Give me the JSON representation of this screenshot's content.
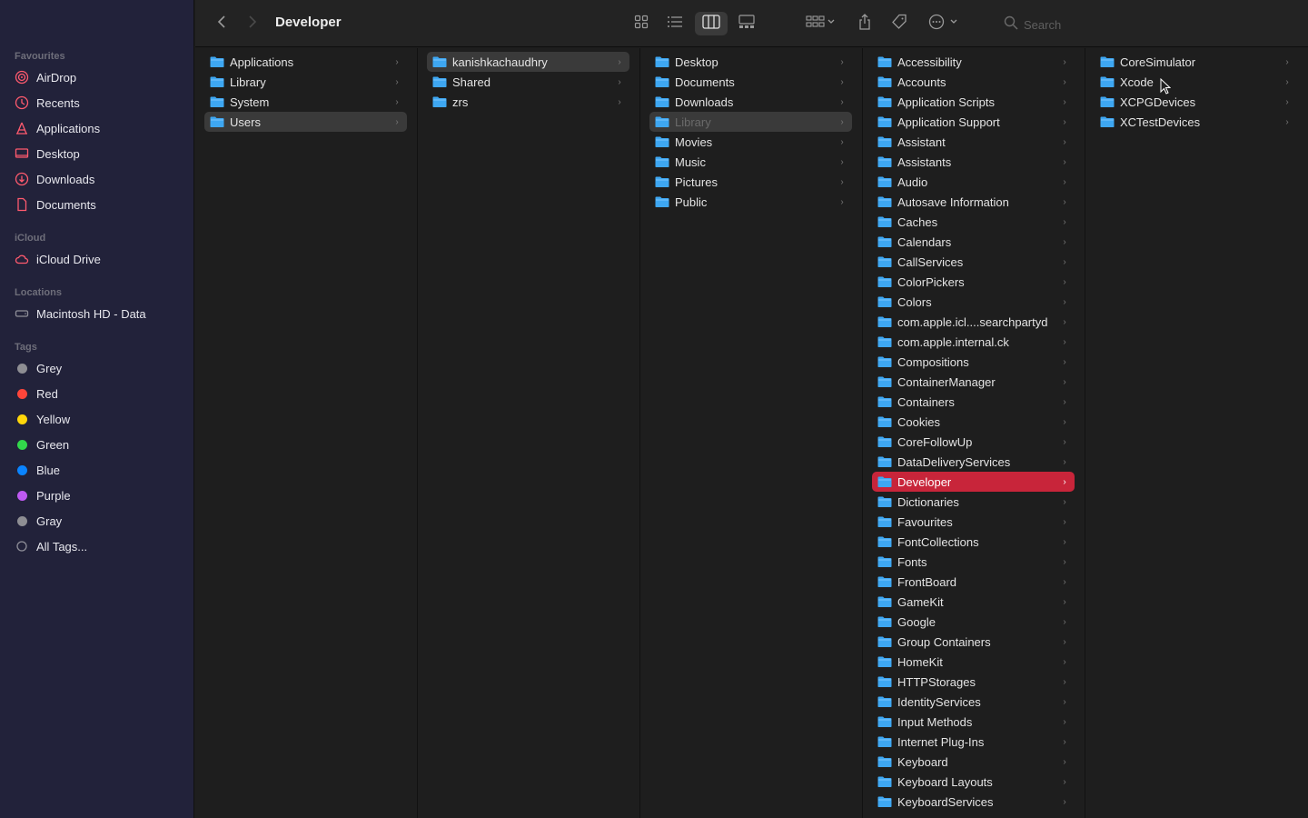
{
  "window": {
    "title": "Developer"
  },
  "sidebar": {
    "favourites_header": "Favourites",
    "favourites": [
      "AirDrop",
      "Recents",
      "Applications",
      "Desktop",
      "Downloads",
      "Documents"
    ],
    "icloud_header": "iCloud",
    "icloud": [
      "iCloud Drive"
    ],
    "locations_header": "Locations",
    "locations": [
      "Macintosh HD - Data"
    ],
    "tags_header": "Tags",
    "tags": [
      {
        "label": "Grey",
        "color": "#8e8e93"
      },
      {
        "label": "Red",
        "color": "#ff453a"
      },
      {
        "label": "Yellow",
        "color": "#ffd60a"
      },
      {
        "label": "Green",
        "color": "#32d74b"
      },
      {
        "label": "Blue",
        "color": "#0a84ff"
      },
      {
        "label": "Purple",
        "color": "#bf5af2"
      },
      {
        "label": "Gray",
        "color": "#8e8e93"
      }
    ],
    "all_tags": "All Tags...",
    "accent_color": "#ff5a6e"
  },
  "toolbar": {
    "search_placeholder": "Search",
    "icons": [
      "back-icon",
      "forward-icon",
      "icon-view-icon",
      "list-view-icon",
      "column-view-icon",
      "gallery-view-icon",
      "group-icon",
      "share-icon",
      "tag-icon",
      "more-icon",
      "search-icon"
    ]
  },
  "columns": [
    {
      "items": [
        "Applications",
        "Library",
        "System",
        "Users"
      ],
      "selected": 3,
      "selected_style": "gray"
    },
    {
      "items": [
        "kanishkachaudhry",
        "Shared",
        "zrs"
      ],
      "selected": 0,
      "selected_style": "gray"
    },
    {
      "items": [
        "Desktop",
        "Documents",
        "Downloads",
        "Library",
        "Movies",
        "Music",
        "Pictures",
        "Public"
      ],
      "selected": 3,
      "selected_style": "gray",
      "dim": 3
    },
    {
      "items": [
        "Accessibility",
        "Accounts",
        "Application Scripts",
        "Application Support",
        "Assistant",
        "Assistants",
        "Audio",
        "Autosave Information",
        "Caches",
        "Calendars",
        "CallServices",
        "ColorPickers",
        "Colors",
        "com.apple.icl....searchpartyd",
        "com.apple.internal.ck",
        "Compositions",
        "ContainerManager",
        "Containers",
        "Cookies",
        "CoreFollowUp",
        "DataDeliveryServices",
        "Developer",
        "Dictionaries",
        "Favourites",
        "FontCollections",
        "Fonts",
        "FrontBoard",
        "GameKit",
        "Google",
        "Group Containers",
        "HomeKit",
        "HTTPStorages",
        "IdentityServices",
        "Input Methods",
        "Internet Plug-Ins",
        "Keyboard",
        "Keyboard Layouts",
        "KeyboardServices"
      ],
      "selected": 21,
      "selected_style": "red"
    },
    {
      "items": [
        "CoreSimulator",
        "Xcode",
        "XCPGDevices",
        "XCTestDevices"
      ],
      "selected": -1
    }
  ],
  "colors": {
    "folder_blue": "#3ea7f2",
    "selection_red": "#c8253a",
    "selection_gray": "#3a3a3a"
  }
}
